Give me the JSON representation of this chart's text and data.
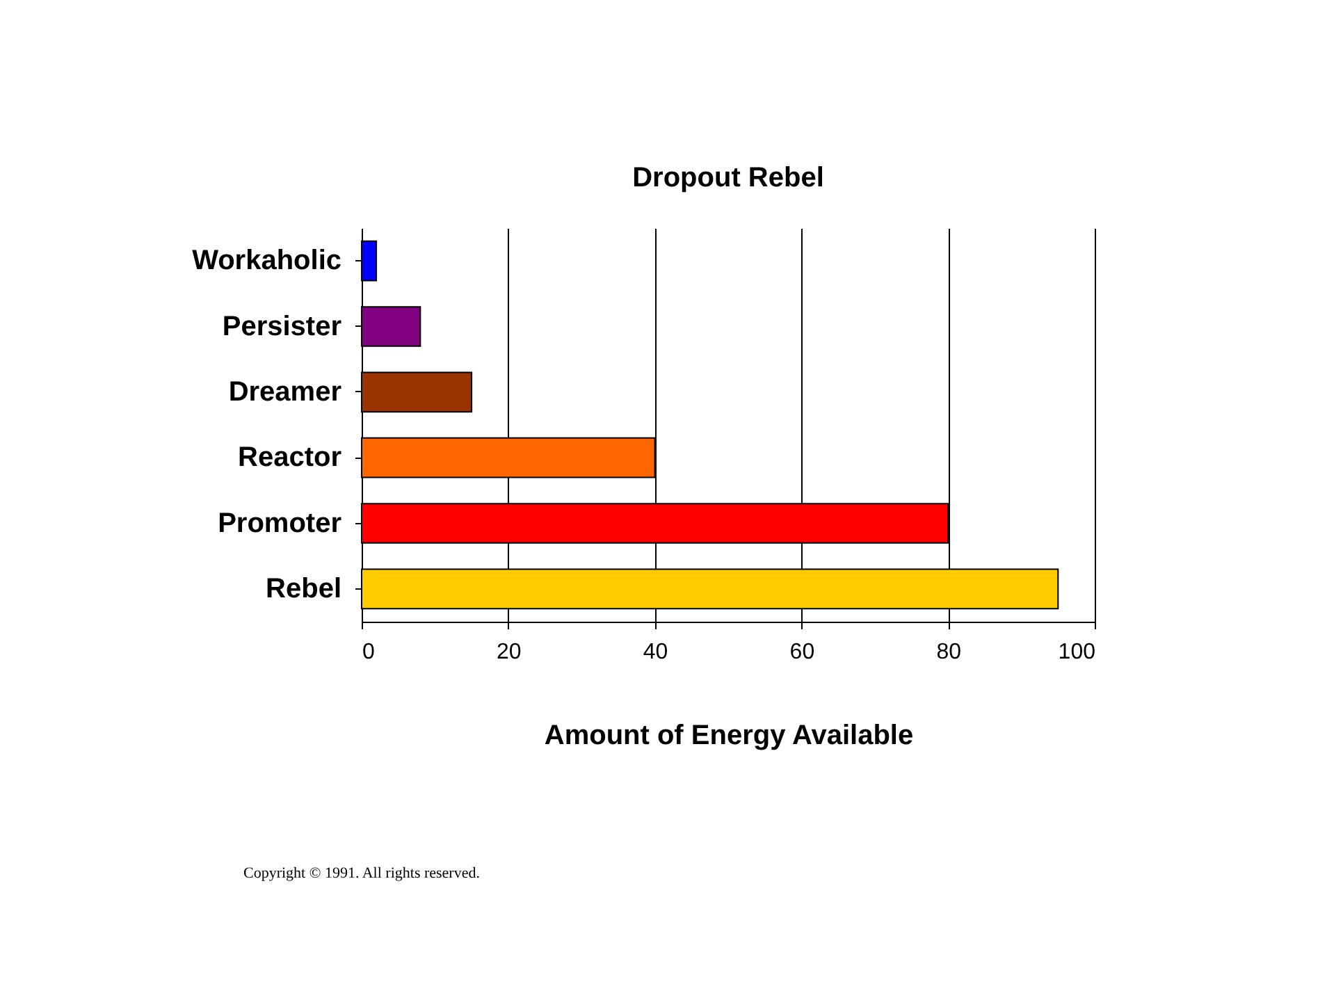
{
  "chart_data": {
    "type": "bar",
    "orientation": "horizontal",
    "title": "Dropout Rebel",
    "xlabel": "Amount of Energy Available",
    "categories": [
      "Workaholic",
      "Persister",
      "Dreamer",
      "Reactor",
      "Promoter",
      "Rebel"
    ],
    "values": [
      2,
      8,
      15,
      40,
      80,
      95
    ],
    "colors": [
      "#0000ff",
      "#800080",
      "#993300",
      "#ff6600",
      "#ff0000",
      "#ffcc00"
    ],
    "xlim": [
      0,
      100
    ],
    "xticks": [
      0,
      20,
      40,
      60,
      80,
      100
    ],
    "grid": "x",
    "annotations": [
      "Copyright © 1991. All rights reserved."
    ]
  }
}
